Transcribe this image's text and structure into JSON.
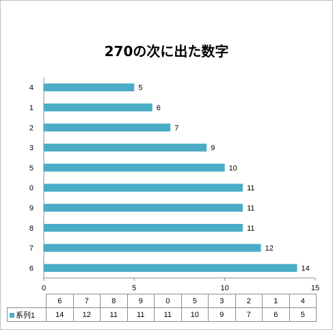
{
  "chart_data": {
    "type": "bar",
    "orientation": "horizontal",
    "title": "270の次に出た数字",
    "categories": [
      "6",
      "7",
      "8",
      "9",
      "0",
      "5",
      "3",
      "2",
      "1",
      "4"
    ],
    "series": [
      {
        "name": "系列1",
        "values": [
          14,
          12,
          11,
          11,
          11,
          10,
          9,
          7,
          6,
          5
        ]
      }
    ],
    "xlim": [
      0,
      15
    ],
    "x_ticks": [
      "0",
      "5",
      "10",
      "15"
    ],
    "grid": false,
    "data_labels": true,
    "data_table": true,
    "bar_color": "#4bacc6"
  }
}
